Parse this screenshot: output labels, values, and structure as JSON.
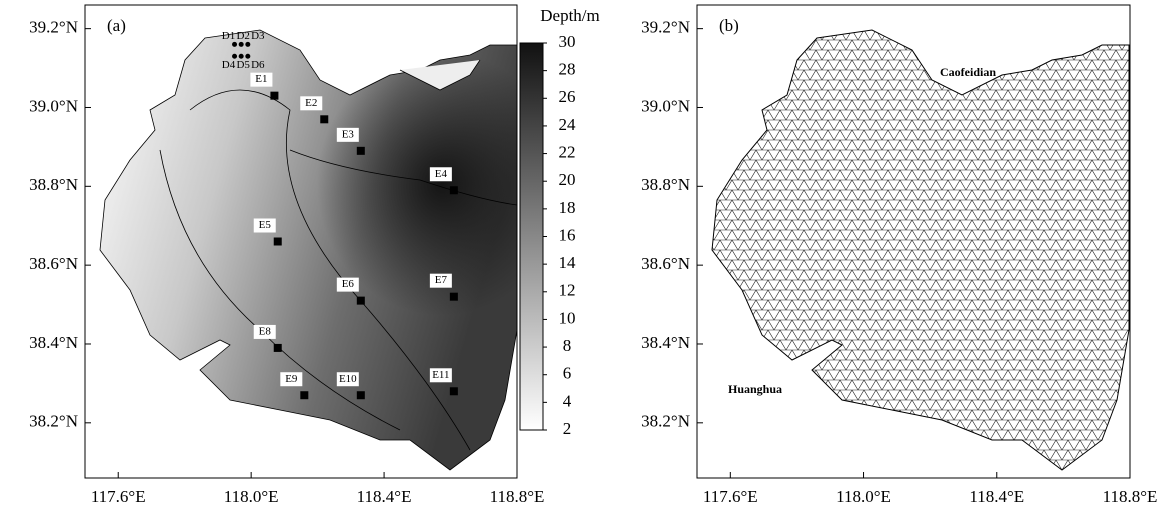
{
  "panels": [
    {
      "label": "(a)",
      "xlim": [
        117.5,
        118.8
      ],
      "ylim": [
        38.06,
        39.26
      ],
      "xticks": [
        {
          "value": 117.6,
          "label": "117.6°E"
        },
        {
          "value": 118.0,
          "label": "118.0°E"
        },
        {
          "value": 118.4,
          "label": "118.4°E"
        },
        {
          "value": 118.8,
          "label": "118.8°E"
        }
      ],
      "yticks": [
        {
          "value": 38.2,
          "label": "38.2°N"
        },
        {
          "value": 38.4,
          "label": "38.4°N"
        },
        {
          "value": 38.6,
          "label": "38.6°N"
        },
        {
          "value": 38.8,
          "label": "38.8°N"
        },
        {
          "value": 39.0,
          "label": "39.0°N"
        },
        {
          "value": 39.2,
          "label": "39.2°N"
        }
      ]
    },
    {
      "label": "(b)",
      "xlim": [
        117.5,
        118.8
      ],
      "ylim": [
        38.06,
        39.26
      ],
      "xticks": [
        {
          "value": 117.6,
          "label": "117.6°E"
        },
        {
          "value": 118.0,
          "label": "118.0°E"
        },
        {
          "value": 118.4,
          "label": "118.4°E"
        },
        {
          "value": 118.8,
          "label": "118.8°E"
        }
      ],
      "yticks": [
        {
          "value": 38.2,
          "label": "38.2°N"
        },
        {
          "value": 38.4,
          "label": "38.4°N"
        },
        {
          "value": 38.6,
          "label": "38.6°N"
        },
        {
          "value": 38.8,
          "label": "38.8°N"
        },
        {
          "value": 39.0,
          "label": "39.0°N"
        },
        {
          "value": 39.2,
          "label": "39.2°N"
        }
      ]
    }
  ],
  "stations": [
    {
      "name": "E1",
      "lon": 118.07,
      "lat": 39.03
    },
    {
      "name": "E2",
      "lon": 118.22,
      "lat": 38.97
    },
    {
      "name": "E3",
      "lon": 118.33,
      "lat": 38.89
    },
    {
      "name": "E4",
      "lon": 118.61,
      "lat": 38.79
    },
    {
      "name": "E5",
      "lon": 118.08,
      "lat": 38.66
    },
    {
      "name": "E6",
      "lon": 118.33,
      "lat": 38.51
    },
    {
      "name": "E7",
      "lon": 118.61,
      "lat": 38.52
    },
    {
      "name": "E8",
      "lon": 118.08,
      "lat": 38.39
    },
    {
      "name": "E9",
      "lon": 118.16,
      "lat": 38.27
    },
    {
      "name": "E10",
      "lon": 118.33,
      "lat": 38.27
    },
    {
      "name": "E11",
      "lon": 118.61,
      "lat": 38.28
    }
  ],
  "dots": [
    {
      "name": "D1",
      "lon": 117.95,
      "lat": 39.16
    },
    {
      "name": "D2",
      "lon": 117.97,
      "lat": 39.16
    },
    {
      "name": "D3",
      "lon": 117.99,
      "lat": 39.16
    },
    {
      "name": "D4",
      "lon": 117.95,
      "lat": 39.13
    },
    {
      "name": "D5",
      "lon": 117.97,
      "lat": 39.13
    },
    {
      "name": "D6",
      "lon": 117.99,
      "lat": 39.13
    }
  ],
  "colorbar": {
    "title": "Depth/m",
    "lim": [
      2,
      30
    ],
    "ticks": [
      2,
      4,
      6,
      8,
      10,
      12,
      14,
      16,
      18,
      20,
      22,
      24,
      26,
      28,
      30
    ]
  },
  "places": [
    {
      "name": "Caofeidian"
    },
    {
      "name": "Huanghua"
    }
  ]
}
